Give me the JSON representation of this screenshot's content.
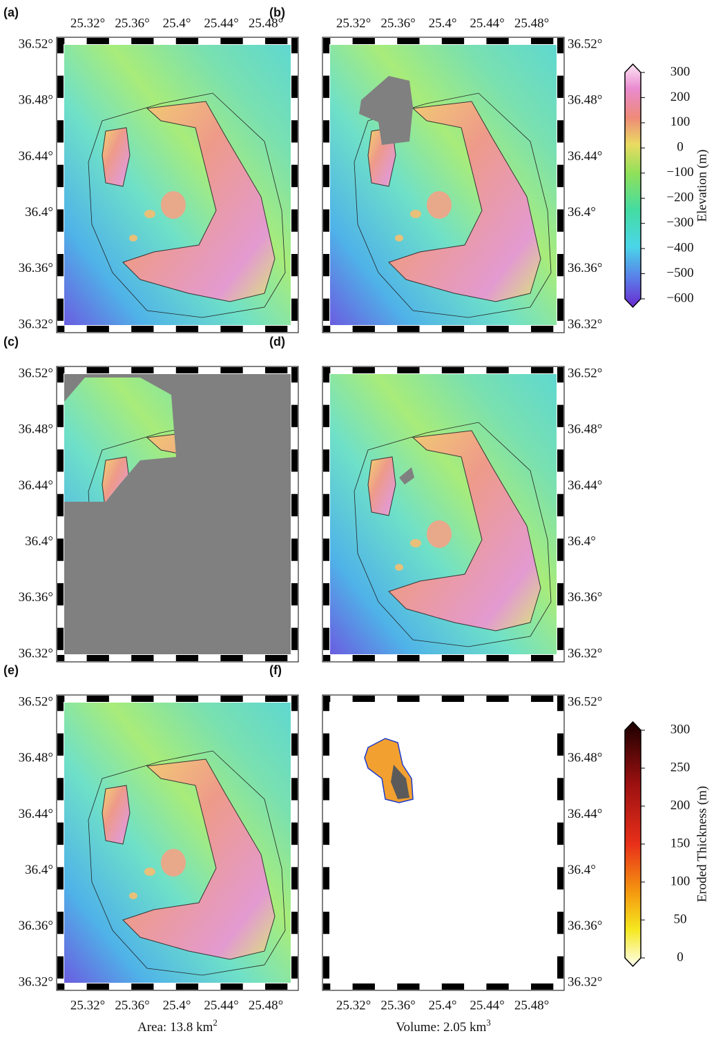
{
  "panels": [
    {
      "label": "(a)"
    },
    {
      "label": "(b)"
    },
    {
      "label": "(c)"
    },
    {
      "label": "(d)"
    },
    {
      "label": "(e)"
    },
    {
      "label": "(f)"
    }
  ],
  "lon_ticks": [
    "25.32°",
    "25.36°",
    "25.4°",
    "25.44°",
    "25.48°"
  ],
  "lat_ticks": [
    "36.52°",
    "36.48°",
    "36.44°",
    "36.4°",
    "36.36°",
    "36.32°"
  ],
  "colorbars": [
    {
      "label": "Elevation (m)",
      "ticks": [
        "300",
        "200",
        "100",
        "0",
        "−100",
        "−200",
        "−300",
        "−400",
        "−500",
        "−600"
      ]
    },
    {
      "label": "Eroded Thickness (m)",
      "ticks": [
        "300",
        "250",
        "200",
        "150",
        "100",
        "50",
        "0"
      ]
    }
  ],
  "footnotes": [
    {
      "text": "Area: 13.8 km",
      "sup": "2"
    },
    {
      "text": "Volume: 2.05 km",
      "sup": "3"
    }
  ]
}
